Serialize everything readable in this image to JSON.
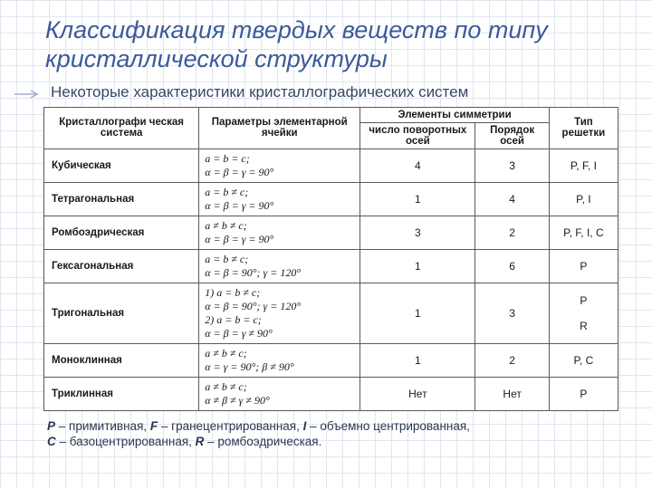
{
  "title": "Классификация твердых веществ по типу кристаллической структуры",
  "subtitle": "Некоторые характеристики кристаллографических систем",
  "tableHeaders": {
    "system": "Кристаллографи ческая система",
    "params": "Параметры элементарной ячейки",
    "symmetry": "Элементы симметрии",
    "rotAxes": "число поворотных осей",
    "axisOrder": "Порядок осей",
    "lattice": "Тип решетки"
  },
  "rows": [
    {
      "system": "Кубическая",
      "params": "a = b = c;\nα = β = γ = 90°",
      "rot": "4",
      "order": "3",
      "lattice": "P, F, I"
    },
    {
      "system": "Тетрагональная",
      "params": "a = b ≠ c;\nα = β = γ = 90°",
      "rot": "1",
      "order": "4",
      "lattice": "P, I"
    },
    {
      "system": "Ромбоэдрическая",
      "params": "a ≠ b ≠ c;\nα = β = γ = 90°",
      "rot": "3",
      "order": "2",
      "lattice": "P, F, I, C"
    },
    {
      "system": "Гексагональная",
      "params": "a = b ≠ c;\nα = β = 90°; γ = 120°",
      "rot": "1",
      "order": "6",
      "lattice": "P"
    },
    {
      "system": "Тригональная",
      "params": "1) a = b ≠ c;\nα = β = 90°; γ = 120°\n2) a = b = c;\nα = β = γ ≠ 90°",
      "rot": "1",
      "order": "3",
      "lattice": "P\n\nR"
    },
    {
      "system": "Моноклинная",
      "params": "a ≠ b ≠ c;\nα = γ = 90°; β ≠ 90°",
      "rot": "1",
      "order": "2",
      "lattice": "P, C"
    },
    {
      "system": "Триклинная",
      "params": "a ≠ b ≠ c;\nα ≠ β ≠ γ ≠ 90°",
      "rot": "Нет",
      "order": "Нет",
      "lattice": "P"
    }
  ],
  "legendParts": {
    "P": "P",
    "Ptxt": " – примитивная, ",
    "F": "F",
    "Ftxt": " – гранецентрированная, ",
    "I": "I",
    "Itxt": " – объемно центрированная,",
    "C": "C",
    "Ctxt": " – базоцентрированная, ",
    "R": "R",
    "Rtxt": " – ромбоэдрическая."
  }
}
